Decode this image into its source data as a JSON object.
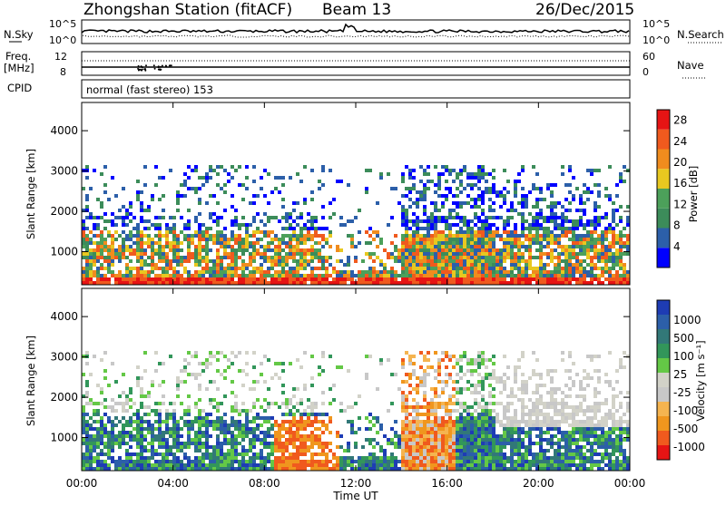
{
  "header": {
    "station": "Zhongshan Station (fitACF)",
    "beam": "Beam 13",
    "date": "26/Dec/2015"
  },
  "top_panels": {
    "nsky_label": "N.Sky",
    "nsky_ticks": [
      "10^5",
      "10^0"
    ],
    "nsearch_label": "N.Search",
    "nsearch_ticks": [
      "10^5",
      "10^0"
    ],
    "freq_label_1": "Freq.",
    "freq_label_2": "[MHz]",
    "freq_ticks": [
      "12",
      "8"
    ],
    "nave_label": "Nave",
    "nave_ticks": [
      "60",
      "0"
    ],
    "cpid_label": "CPID",
    "cpid_text": "normal (fast stereo) 153"
  },
  "colors": {
    "power_scale": [
      "#0000ff",
      "#2c5fa9",
      "#3c8c5a",
      "#4ca05a",
      "#e8c820",
      "#f08c1e",
      "#f05a1e",
      "#e61414"
    ],
    "velocity_scale": [
      "#e61414",
      "#f05a1e",
      "#f0961e",
      "#f5b450",
      "#c8c8c8",
      "#d2d2c8",
      "#64c846",
      "#32965a",
      "#327878",
      "#2c5fa9",
      "#1e3cb4"
    ]
  },
  "chart_data": [
    {
      "type": "heatmap",
      "title": "Power",
      "xlabel": "Time UT",
      "ylabel": "Slant Range [km]",
      "x_ticks": [
        "00:00",
        "04:00",
        "08:00",
        "12:00",
        "16:00",
        "20:00",
        "00:00"
      ],
      "y_ticks": [
        1000,
        2000,
        3000,
        4000
      ],
      "ylim": [
        180,
        4700
      ],
      "colorbar_label": "Power [dB]",
      "colorbar_ticks": [
        4,
        8,
        12,
        16,
        20,
        24,
        28
      ],
      "colorbar_range": [
        0,
        30
      ]
    },
    {
      "type": "heatmap",
      "title": "Velocity",
      "xlabel": "Time UT",
      "ylabel": "Slant Range [km]",
      "x_ticks": [
        "00:00",
        "04:00",
        "08:00",
        "12:00",
        "16:00",
        "20:00",
        "00:00"
      ],
      "y_ticks": [
        1000,
        2000,
        3000,
        4000
      ],
      "ylim": [
        180,
        4700
      ],
      "colorbar_label": "Velocity [m s⁻¹]",
      "colorbar_ticks": [
        "1000",
        "500",
        "100",
        "25",
        "-25",
        "-100",
        "-500",
        "-1000"
      ]
    }
  ]
}
